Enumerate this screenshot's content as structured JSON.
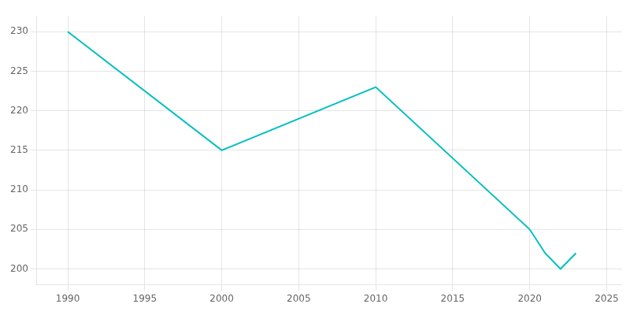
{
  "chart_data": {
    "type": "line",
    "x": [
      1990,
      2000,
      2010,
      2020,
      2021,
      2022,
      2023
    ],
    "values": [
      230,
      215,
      223,
      205,
      202,
      200,
      202
    ],
    "color": "#00BFBF",
    "xlim": [
      1988,
      2026
    ],
    "ylim": [
      198,
      232
    ],
    "xticks": [
      1990,
      1995,
      2000,
      2005,
      2010,
      2015,
      2020,
      2025
    ],
    "yticks": [
      200,
      205,
      210,
      215,
      220,
      225,
      230
    ],
    "grid": true
  }
}
